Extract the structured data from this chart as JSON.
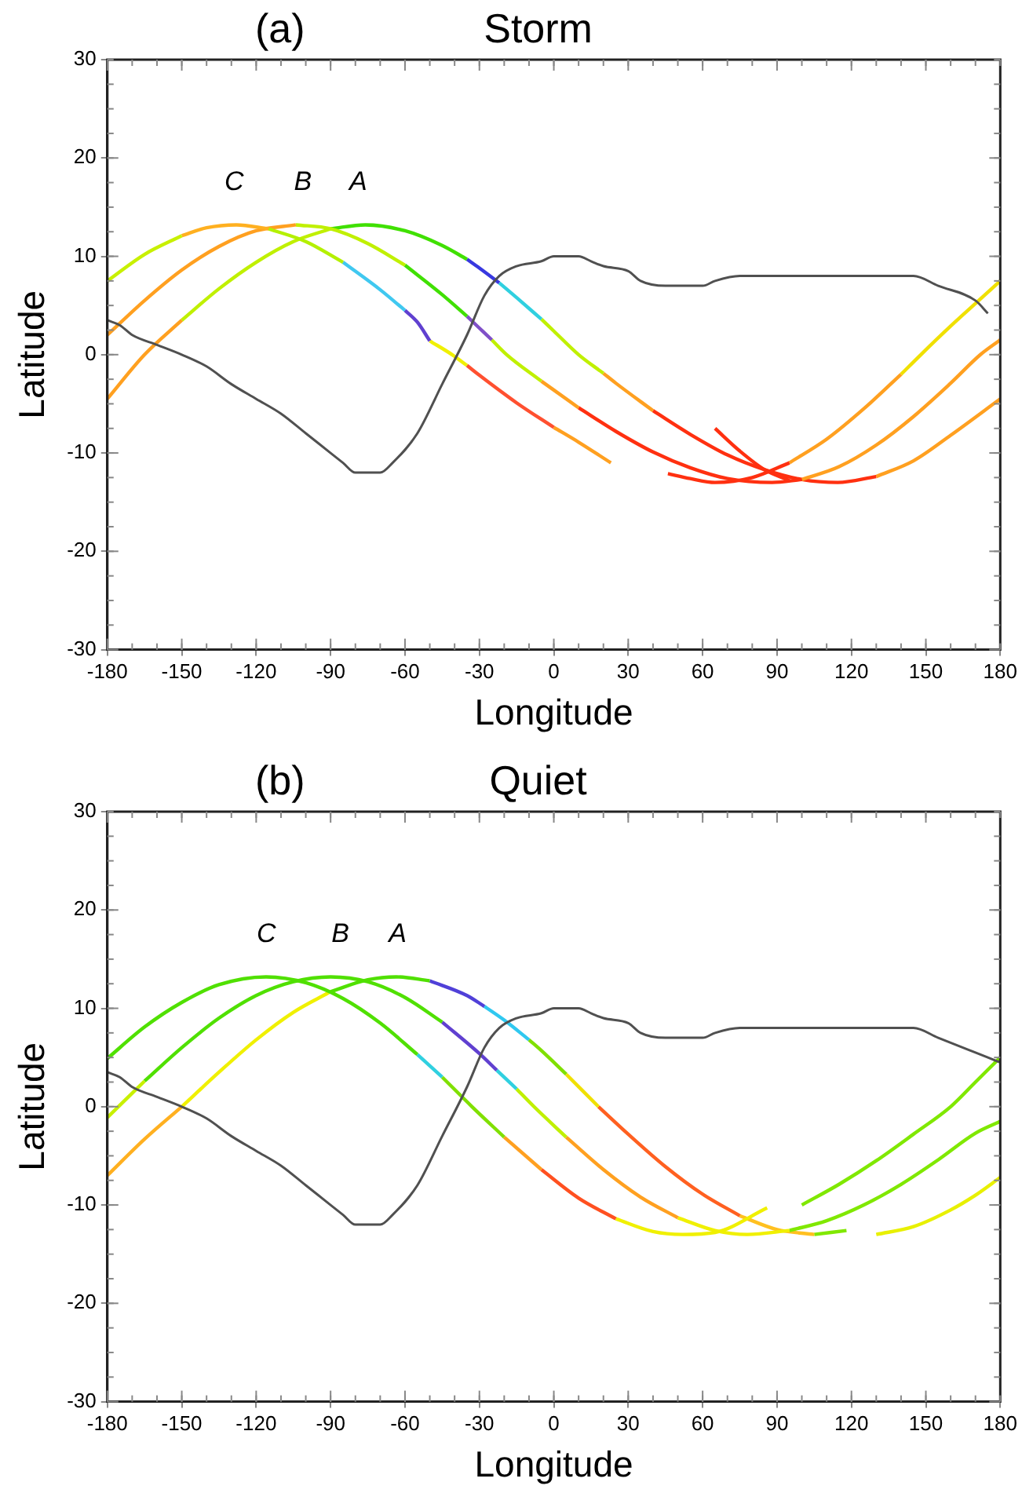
{
  "chart_data": [
    {
      "type": "line",
      "title": "Storm",
      "xlabel": "Longitude",
      "ylabel": "Latitude",
      "xlim": [
        -180,
        180
      ],
      "ylim": [
        -30,
        30
      ],
      "xticks": [
        -180,
        -150,
        -120,
        -90,
        -60,
        -30,
        0,
        30,
        60,
        90,
        120,
        150,
        180
      ],
      "yticks": [
        -30,
        -20,
        -10,
        0,
        10,
        20,
        30
      ],
      "grid": false,
      "legend": false,
      "marker": "none",
      "line_style": "solid",
      "annotations": [
        "(a)",
        "C",
        "B",
        "A"
      ],
      "series": [
        {
          "color": "#505050",
          "x": [
            -180,
            -175,
            -170,
            -160,
            -150,
            -140,
            -130,
            -120,
            -110,
            -100,
            -90,
            -85,
            -80,
            -70,
            -65,
            -55,
            -45,
            -35,
            -28,
            -22,
            -15,
            -5,
            0,
            10,
            15,
            20,
            30,
            35,
            45,
            60,
            65,
            75,
            145,
            155,
            170,
            175
          ],
          "values": [
            3.5,
            3,
            2,
            1,
            0,
            -1.2,
            -3,
            -4.5,
            -6,
            -8,
            -10,
            -11,
            -12,
            -12,
            -11,
            -8,
            -3,
            2,
            6,
            8,
            9,
            9.5,
            10,
            10,
            9.5,
            9,
            8.5,
            7.5,
            7,
            7,
            7.5,
            8,
            8,
            7,
            5.5,
            4.2
          ]
        },
        {
          "color": "#c8f000",
          "x": [
            -180,
            -165,
            -150
          ],
          "values": [
            7.5,
            10.2,
            12.1
          ]
        },
        {
          "color": "#ffb020",
          "x": [
            -150,
            -140,
            -128,
            -115
          ],
          "values": [
            12.1,
            12.9,
            13.2,
            12.8
          ]
        },
        {
          "color": "#b4f000",
          "x": [
            -115,
            -100,
            -85
          ],
          "values": [
            12.8,
            11.5,
            9.4
          ]
        },
        {
          "color": "#40c8f0",
          "x": [
            -85,
            -70,
            -60
          ],
          "values": [
            9.4,
            6.6,
            4.5
          ]
        },
        {
          "color": "#6040d0",
          "x": [
            -60,
            -55,
            -50
          ],
          "values": [
            4.5,
            3.3,
            1.4
          ]
        },
        {
          "color": "#f0f000",
          "x": [
            -50,
            -41,
            -35
          ],
          "values": [
            1.4,
            0,
            -1.1
          ]
        },
        {
          "color": "#ff5030",
          "x": [
            -35,
            -30,
            -15,
            0
          ],
          "values": [
            -1.1,
            -2.1,
            -4.9,
            -7.4
          ]
        },
        {
          "color": "#ffa020",
          "x": [
            0,
            10,
            23
          ],
          "values": [
            -7.4,
            -8.9,
            -11
          ]
        },
        {
          "color": "#ff3010",
          "x": [
            46,
            55,
            65,
            80,
            95
          ],
          "values": [
            -12.1,
            -12.6,
            -13,
            -12.5,
            -11
          ]
        },
        {
          "color": "#ffa020",
          "x": [
            95,
            110,
            125,
            140
          ],
          "values": [
            -11,
            -8.6,
            -5.5,
            -2
          ]
        },
        {
          "color": "#f0e000",
          "x": [
            140,
            148,
            160,
            170,
            180
          ],
          "values": [
            -2,
            0,
            2.9,
            5.2,
            7.5
          ]
        },
        {
          "color": "#ffa020",
          "x": [
            -180,
            -165,
            -150,
            -135,
            -120,
            -104
          ],
          "values": [
            2,
            5.5,
            8.6,
            11,
            12.6,
            13.2
          ]
        },
        {
          "color": "#c0f000",
          "x": [
            -104,
            -90,
            -75,
            -60
          ],
          "values": [
            13.2,
            12.8,
            11.3,
            9.1
          ]
        },
        {
          "color": "#40e000",
          "x": [
            -60,
            -45,
            -35
          ],
          "values": [
            9.1,
            6.1,
            3.9
          ]
        },
        {
          "color": "#8050c8",
          "x": [
            -35,
            -30,
            -25
          ],
          "values": [
            3.9,
            2.7,
            1.5
          ]
        },
        {
          "color": "#c0f000",
          "x": [
            -25,
            -19,
            -5
          ],
          "values": [
            1.5,
            0,
            -2.7
          ]
        },
        {
          "color": "#ffa020",
          "x": [
            -5,
            10
          ],
          "values": [
            -2.7,
            -5.4
          ]
        },
        {
          "color": "#ff3010",
          "x": [
            10,
            25,
            40,
            55,
            70,
            88,
            100
          ],
          "values": [
            -5.4,
            -7.8,
            -9.9,
            -11.5,
            -12.6,
            -13,
            -12.7
          ]
        },
        {
          "color": "#ffa020",
          "x": [
            100,
            115,
            130,
            145,
            160,
            172,
            180
          ],
          "values": [
            -12.7,
            -11.4,
            -9.2,
            -6.3,
            -2.9,
            0,
            1.5
          ]
        },
        {
          "color": "#ffa020",
          "x": [
            -180,
            -165,
            -150
          ],
          "values": [
            -4.5,
            0,
            3.5
          ]
        },
        {
          "color": "#c0f000",
          "x": [
            -150,
            -135,
            -120,
            -105,
            -90
          ],
          "values": [
            3.5,
            6.7,
            9.4,
            11.5,
            12.8
          ]
        },
        {
          "color": "#40e000",
          "x": [
            -90,
            -76,
            -60,
            -45,
            -35
          ],
          "values": [
            12.8,
            13.2,
            12.6,
            11.1,
            9.7
          ]
        },
        {
          "color": "#3838e0",
          "x": [
            -35,
            -30,
            -22
          ],
          "values": [
            9.7,
            8.8,
            7.3
          ]
        },
        {
          "color": "#30d0e0",
          "x": [
            -22,
            -15,
            -5
          ],
          "values": [
            7.3,
            5.8,
            3.6
          ]
        },
        {
          "color": "#c0f000",
          "x": [
            -5,
            0,
            10,
            20
          ],
          "values": [
            3.6,
            2.4,
            0,
            -1.9
          ]
        },
        {
          "color": "#ffa020",
          "x": [
            20,
            25,
            40
          ],
          "values": [
            -1.9,
            -2.9,
            -5.7
          ]
        },
        {
          "color": "#ff3010",
          "x": [
            40,
            55,
            70,
            85,
            100,
            114.5,
            130
          ],
          "values": [
            -5.7,
            -8.1,
            -10.2,
            -11.7,
            -12.7,
            -13,
            -12.4
          ]
        },
        {
          "color": "#ffa020",
          "x": [
            130,
            145,
            160,
            180
          ],
          "values": [
            -12.4,
            -10.8,
            -8.2,
            -4.5
          ]
        },
        {
          "color": "#ff3010",
          "x": [
            65,
            75,
            85,
            95
          ],
          "values": [
            -7.5,
            -9.8,
            -11.7,
            -12.8
          ]
        }
      ]
    },
    {
      "type": "line",
      "title": "Quiet",
      "xlabel": "Longitude",
      "ylabel": "Latitude",
      "xlim": [
        -180,
        180
      ],
      "ylim": [
        -30,
        30
      ],
      "xticks": [
        -180,
        -150,
        -120,
        -90,
        -60,
        -30,
        0,
        30,
        60,
        90,
        120,
        150,
        180
      ],
      "yticks": [
        -30,
        -20,
        -10,
        0,
        10,
        20,
        30
      ],
      "grid": false,
      "legend": false,
      "marker": "none",
      "line_style": "solid",
      "annotations": [
        "(b)",
        "C",
        "B",
        "A"
      ],
      "series": [
        {
          "color": "#505050",
          "x": [
            -180,
            -175,
            -170,
            -160,
            -150,
            -140,
            -130,
            -120,
            -110,
            -100,
            -90,
            -85,
            -80,
            -70,
            -65,
            -55,
            -45,
            -35,
            -28,
            -22,
            -15,
            -5,
            0,
            10,
            15,
            20,
            30,
            35,
            45,
            60,
            65,
            75,
            145,
            155,
            170,
            180
          ],
          "values": [
            3.5,
            3,
            2,
            1,
            0,
            -1.2,
            -3,
            -4.5,
            -6,
            -8,
            -10,
            -11,
            -12,
            -12,
            -11,
            -8,
            -3,
            2,
            6,
            8,
            9,
            9.5,
            10,
            10,
            9.5,
            9,
            8.5,
            7.5,
            7,
            7,
            7.5,
            8,
            8,
            7,
            5.5,
            4.5
          ]
        },
        {
          "color": "#50e000",
          "x": [
            -180,
            -165,
            -150,
            -135,
            -116,
            -100,
            -85,
            -70,
            -55
          ],
          "values": [
            4.9,
            8.1,
            10.6,
            12.4,
            13.2,
            12.6,
            11,
            8.5,
            5.3
          ]
        },
        {
          "color": "#30d0e0",
          "x": [
            -55,
            -45
          ],
          "values": [
            5.3,
            3
          ]
        },
        {
          "color": "#80e000",
          "x": [
            -45,
            -33,
            -20
          ],
          "values": [
            3,
            0,
            -3.1
          ]
        },
        {
          "color": "#ffa020",
          "x": [
            -20,
            -5
          ],
          "values": [
            -3.1,
            -6.4
          ]
        },
        {
          "color": "#ff5020",
          "x": [
            -5,
            10,
            25
          ],
          "values": [
            -6.4,
            -9.3,
            -11.4
          ]
        },
        {
          "color": "#f0f000",
          "x": [
            25,
            40,
            52,
            65,
            86
          ],
          "values": [
            -11.4,
            -12.7,
            -13,
            -12.8,
            -10.3
          ]
        },
        {
          "color": "#80e800",
          "x": [
            100,
            115,
            130,
            145,
            160,
            170,
            180
          ],
          "values": [
            -10,
            -7.9,
            -5.5,
            -2.8,
            0,
            2.5,
            5
          ]
        },
        {
          "color": "#c8f000",
          "x": [
            -180,
            -165
          ],
          "values": [
            -1.1,
            2.6
          ]
        },
        {
          "color": "#50e000",
          "x": [
            -165,
            -150,
            -135,
            -120,
            -105,
            -90,
            -75,
            -60,
            -45
          ],
          "values": [
            2.6,
            6,
            9,
            11.3,
            12.7,
            13.2,
            12.7,
            11.1,
            8.6
          ]
        },
        {
          "color": "#6040d0",
          "x": [
            -45,
            -30,
            -23
          ],
          "values": [
            8.6,
            5.4,
            3.7
          ]
        },
        {
          "color": "#30d0e0",
          "x": [
            -23,
            -15
          ],
          "values": [
            3.7,
            1.8
          ]
        },
        {
          "color": "#c0f000",
          "x": [
            -15,
            -8,
            5
          ],
          "values": [
            1.8,
            0,
            -3.1
          ]
        },
        {
          "color": "#ffa020",
          "x": [
            5,
            20,
            35,
            50
          ],
          "values": [
            -3.1,
            -6.4,
            -9.2,
            -11.3
          ]
        },
        {
          "color": "#f0f000",
          "x": [
            50,
            65,
            78,
            95
          ],
          "values": [
            -11.3,
            -12.6,
            -13,
            -12.6
          ]
        },
        {
          "color": "#80e800",
          "x": [
            95,
            110,
            125,
            140,
            155,
            170,
            180
          ],
          "values": [
            -12.6,
            -11.6,
            -10,
            -7.9,
            -5.4,
            -2.7,
            -1.5
          ]
        },
        {
          "color": "#ffb020",
          "x": [
            -180,
            -165,
            -150
          ],
          "values": [
            -7,
            -3.3,
            0
          ]
        },
        {
          "color": "#f0f000",
          "x": [
            -150,
            -135,
            -120,
            -105,
            -90
          ],
          "values": [
            0,
            3.5,
            6.8,
            9.6,
            11.7
          ]
        },
        {
          "color": "#50e000",
          "x": [
            -90,
            -75,
            -63.5,
            -50
          ],
          "values": [
            11.7,
            12.9,
            13.2,
            12.8
          ]
        },
        {
          "color": "#5040d8",
          "x": [
            -50,
            -35,
            -28
          ],
          "values": [
            12.8,
            11.3,
            10.2
          ]
        },
        {
          "color": "#30c8f0",
          "x": [
            -28,
            -20,
            -10
          ],
          "values": [
            10.2,
            8.8,
            6.8
          ]
        },
        {
          "color": "#80e000",
          "x": [
            -10,
            -5,
            5
          ],
          "values": [
            6.8,
            5.7,
            3.3
          ]
        },
        {
          "color": "#f0e000",
          "x": [
            5,
            18
          ],
          "values": [
            3.3,
            0
          ]
        },
        {
          "color": "#ff6020",
          "x": [
            18,
            30,
            45,
            60,
            75
          ],
          "values": [
            0,
            -2.8,
            -6.1,
            -8.9,
            -11.1
          ]
        },
        {
          "color": "#ffc020",
          "x": [
            75,
            90,
            105
          ],
          "values": [
            -11.1,
            -12.5,
            -13
          ]
        },
        {
          "color": "#80e800",
          "x": [
            105,
            118
          ],
          "values": [
            -13,
            -12.6
          ]
        },
        {
          "color": "#e8f000",
          "x": [
            130,
            145,
            160,
            170,
            180
          ],
          "values": [
            -13,
            -12.2,
            -10.5,
            -9,
            -7.2
          ]
        }
      ]
    }
  ]
}
